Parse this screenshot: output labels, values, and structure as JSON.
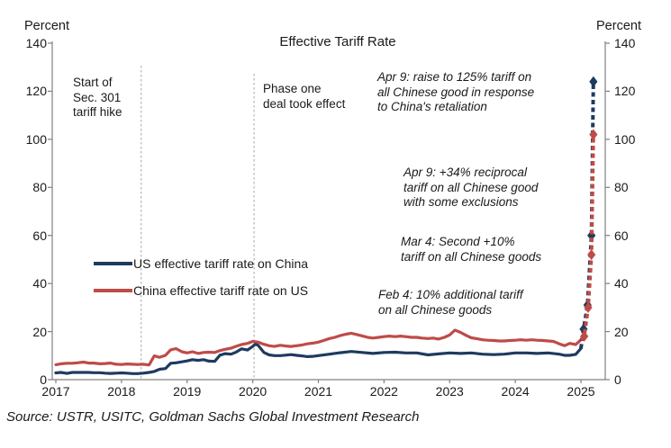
{
  "title": "Effective Tariff Rate",
  "axis_unit_left": "Percent",
  "axis_unit_right": "Percent",
  "source": "Source: USTR, USITC, Goldman Sachs Global Investment Research",
  "colors": {
    "us_line": "#1F3A5F",
    "china_line": "#BE4B48",
    "axis": "#808080",
    "event_line": "#A6A6A6"
  },
  "legend": {
    "items": [
      {
        "label": "US effective tariff rate on China",
        "color": "#1F3A5F"
      },
      {
        "label": "China effective tariff rate on US",
        "color": "#BE4B48"
      }
    ]
  },
  "annotations": {
    "sec301": "Start of\nSec. 301\ntariff hike",
    "phase_one": "Phase one\ndeal took effect",
    "apr9_raise": "Apr 9: raise to 125% tariff on\nall Chinese good in response\nto China's retaliation",
    "apr9_reciprocal": "Apr 9: +34% reciprocal\ntariff on all Chinese good\nwith some exclusions",
    "mar4": "Mar 4: Second +10%\ntariff on all Chinese goods",
    "feb4": "Feb 4: 10% additional tariff\non all Chinese goods"
  },
  "chart_data": {
    "type": "line",
    "title": "Effective Tariff Rate",
    "xlabel": "",
    "ylabel": "Percent",
    "ylim": [
      0,
      140
    ],
    "y_ticks": [
      0,
      20,
      40,
      60,
      80,
      100,
      120,
      140
    ],
    "x_ticks": [
      2017,
      2018,
      2019,
      2020,
      2021,
      2022,
      2023,
      2024,
      2025
    ],
    "grid": false,
    "legend_position": "center-left",
    "event_lines": [
      {
        "x": 2018.3,
        "label": "Start of Sec. 301 tariff hike"
      },
      {
        "x": 2020.02,
        "label": "Phase one deal took effect"
      }
    ],
    "series": [
      {
        "name": "US effective tariff rate on China",
        "color": "#1F3A5F",
        "points": [
          [
            2017.0,
            2.8
          ],
          [
            2017.08,
            3.0
          ],
          [
            2017.17,
            2.6
          ],
          [
            2017.25,
            3.0
          ],
          [
            2017.33,
            3.0
          ],
          [
            2017.42,
            3.0
          ],
          [
            2017.5,
            3.0
          ],
          [
            2017.58,
            2.9
          ],
          [
            2017.67,
            2.9
          ],
          [
            2017.75,
            2.7
          ],
          [
            2017.83,
            2.6
          ],
          [
            2017.92,
            2.7
          ],
          [
            2018.0,
            2.8
          ],
          [
            2018.08,
            2.7
          ],
          [
            2018.17,
            2.5
          ],
          [
            2018.25,
            2.5
          ],
          [
            2018.33,
            2.7
          ],
          [
            2018.42,
            3.0
          ],
          [
            2018.5,
            3.4
          ],
          [
            2018.58,
            4.3
          ],
          [
            2018.67,
            4.6
          ],
          [
            2018.75,
            6.8
          ],
          [
            2018.83,
            7.0
          ],
          [
            2018.92,
            7.4
          ],
          [
            2019.0,
            7.8
          ],
          [
            2019.08,
            8.3
          ],
          [
            2019.17,
            8.0
          ],
          [
            2019.25,
            8.3
          ],
          [
            2019.33,
            7.7
          ],
          [
            2019.42,
            7.6
          ],
          [
            2019.5,
            10.2
          ],
          [
            2019.58,
            10.8
          ],
          [
            2019.67,
            10.6
          ],
          [
            2019.75,
            11.5
          ],
          [
            2019.83,
            12.8
          ],
          [
            2019.92,
            12.3
          ],
          [
            2020.0,
            13.8
          ],
          [
            2020.04,
            14.8
          ],
          [
            2020.08,
            14.3
          ],
          [
            2020.17,
            11.3
          ],
          [
            2020.25,
            10.3
          ],
          [
            2020.33,
            10.0
          ],
          [
            2020.42,
            10.0
          ],
          [
            2020.5,
            10.2
          ],
          [
            2020.58,
            10.4
          ],
          [
            2020.67,
            10.1
          ],
          [
            2020.75,
            9.9
          ],
          [
            2020.83,
            9.6
          ],
          [
            2020.92,
            9.7
          ],
          [
            2021.0,
            10.0
          ],
          [
            2021.17,
            10.6
          ],
          [
            2021.33,
            11.2
          ],
          [
            2021.5,
            11.7
          ],
          [
            2021.67,
            11.3
          ],
          [
            2021.83,
            10.9
          ],
          [
            2022.0,
            11.3
          ],
          [
            2022.17,
            11.4
          ],
          [
            2022.33,
            11.1
          ],
          [
            2022.5,
            11.1
          ],
          [
            2022.67,
            10.3
          ],
          [
            2022.83,
            10.7
          ],
          [
            2023.0,
            11.1
          ],
          [
            2023.17,
            10.9
          ],
          [
            2023.33,
            11.1
          ],
          [
            2023.5,
            10.6
          ],
          [
            2023.67,
            10.4
          ],
          [
            2023.83,
            10.6
          ],
          [
            2024.0,
            11.1
          ],
          [
            2024.17,
            11.1
          ],
          [
            2024.33,
            10.9
          ],
          [
            2024.5,
            11.1
          ],
          [
            2024.67,
            10.6
          ],
          [
            2024.75,
            10.1
          ],
          [
            2024.83,
            10.1
          ],
          [
            2024.92,
            10.5
          ],
          [
            2025.0,
            13.0
          ]
        ]
      },
      {
        "name": "China effective tariff rate on US",
        "color": "#BE4B48",
        "points": [
          [
            2017.0,
            6.2
          ],
          [
            2017.08,
            6.6
          ],
          [
            2017.17,
            6.8
          ],
          [
            2017.25,
            6.8
          ],
          [
            2017.33,
            7.0
          ],
          [
            2017.42,
            7.3
          ],
          [
            2017.5,
            6.9
          ],
          [
            2017.58,
            6.9
          ],
          [
            2017.67,
            6.6
          ],
          [
            2017.75,
            6.7
          ],
          [
            2017.83,
            6.9
          ],
          [
            2017.92,
            6.4
          ],
          [
            2018.0,
            6.3
          ],
          [
            2018.08,
            6.5
          ],
          [
            2018.17,
            6.4
          ],
          [
            2018.25,
            6.3
          ],
          [
            2018.33,
            6.4
          ],
          [
            2018.42,
            6.1
          ],
          [
            2018.5,
            9.9
          ],
          [
            2018.58,
            9.3
          ],
          [
            2018.67,
            10.1
          ],
          [
            2018.75,
            12.4
          ],
          [
            2018.83,
            12.9
          ],
          [
            2018.92,
            11.6
          ],
          [
            2019.0,
            11.1
          ],
          [
            2019.08,
            11.6
          ],
          [
            2019.17,
            10.9
          ],
          [
            2019.25,
            11.3
          ],
          [
            2019.33,
            11.4
          ],
          [
            2019.42,
            11.3
          ],
          [
            2019.5,
            12.1
          ],
          [
            2019.58,
            12.6
          ],
          [
            2019.67,
            13.1
          ],
          [
            2019.75,
            13.9
          ],
          [
            2019.83,
            14.6
          ],
          [
            2019.92,
            15.1
          ],
          [
            2020.0,
            15.9
          ],
          [
            2020.08,
            15.6
          ],
          [
            2020.17,
            14.7
          ],
          [
            2020.25,
            14.1
          ],
          [
            2020.33,
            13.8
          ],
          [
            2020.42,
            14.3
          ],
          [
            2020.5,
            14.0
          ],
          [
            2020.58,
            13.8
          ],
          [
            2020.67,
            14.1
          ],
          [
            2020.75,
            14.4
          ],
          [
            2020.83,
            14.9
          ],
          [
            2020.92,
            15.2
          ],
          [
            2021.0,
            15.6
          ],
          [
            2021.08,
            16.3
          ],
          [
            2021.17,
            17.1
          ],
          [
            2021.25,
            17.6
          ],
          [
            2021.33,
            18.3
          ],
          [
            2021.42,
            18.9
          ],
          [
            2021.5,
            19.3
          ],
          [
            2021.58,
            18.8
          ],
          [
            2021.67,
            18.2
          ],
          [
            2021.75,
            17.6
          ],
          [
            2021.83,
            17.3
          ],
          [
            2021.92,
            17.6
          ],
          [
            2022.0,
            17.9
          ],
          [
            2022.08,
            18.1
          ],
          [
            2022.17,
            17.9
          ],
          [
            2022.25,
            18.1
          ],
          [
            2022.33,
            17.9
          ],
          [
            2022.42,
            17.6
          ],
          [
            2022.5,
            17.6
          ],
          [
            2022.58,
            17.3
          ],
          [
            2022.67,
            17.1
          ],
          [
            2022.75,
            17.3
          ],
          [
            2022.83,
            16.9
          ],
          [
            2022.92,
            17.6
          ],
          [
            2023.0,
            18.6
          ],
          [
            2023.08,
            20.6
          ],
          [
            2023.17,
            19.6
          ],
          [
            2023.25,
            18.4
          ],
          [
            2023.33,
            17.4
          ],
          [
            2023.42,
            17.0
          ],
          [
            2023.5,
            16.6
          ],
          [
            2023.58,
            16.4
          ],
          [
            2023.67,
            16.3
          ],
          [
            2023.75,
            16.1
          ],
          [
            2023.83,
            16.1
          ],
          [
            2023.92,
            16.3
          ],
          [
            2024.0,
            16.4
          ],
          [
            2024.08,
            16.6
          ],
          [
            2024.17,
            16.4
          ],
          [
            2024.25,
            16.6
          ],
          [
            2024.33,
            16.4
          ],
          [
            2024.42,
            16.3
          ],
          [
            2024.5,
            16.1
          ],
          [
            2024.58,
            15.9
          ],
          [
            2024.67,
            14.9
          ],
          [
            2024.75,
            14.1
          ],
          [
            2024.83,
            15.1
          ],
          [
            2024.92,
            14.6
          ],
          [
            2025.0,
            16.6
          ]
        ]
      }
    ],
    "spike_series": [
      {
        "name": "US 2025 tariff spike (dashed, diamond markers)",
        "color": "#1F3A5F",
        "points": [
          [
            2025.0,
            13
          ],
          [
            2025.04,
            21
          ],
          [
            2025.1,
            31
          ],
          [
            2025.16,
            60
          ],
          [
            2025.19,
            124
          ]
        ],
        "markers": [
          [
            2025.04,
            21
          ],
          [
            2025.1,
            31
          ],
          [
            2025.16,
            60
          ],
          [
            2025.19,
            124
          ]
        ]
      },
      {
        "name": "China 2025 tariff spike (dashed, diamond markers)",
        "color": "#BE4B48",
        "points": [
          [
            2025.0,
            16.6
          ],
          [
            2025.05,
            18
          ],
          [
            2025.11,
            30
          ],
          [
            2025.16,
            52
          ],
          [
            2025.19,
            102
          ]
        ],
        "markers": [
          [
            2025.05,
            18
          ],
          [
            2025.11,
            30
          ],
          [
            2025.16,
            52
          ],
          [
            2025.19,
            102
          ]
        ]
      }
    ]
  }
}
